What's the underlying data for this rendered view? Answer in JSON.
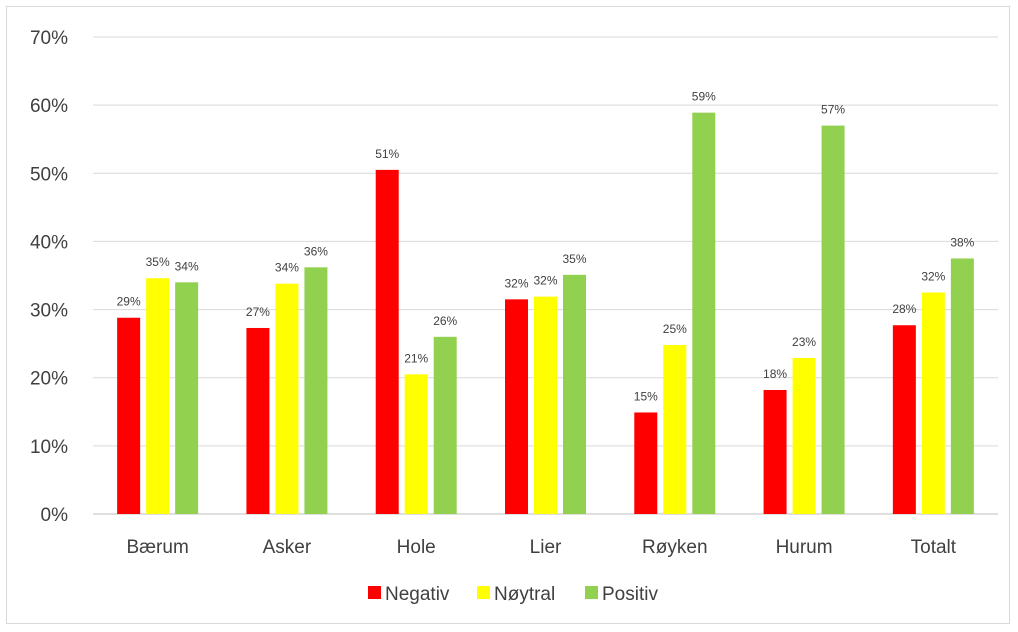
{
  "chart_data": {
    "type": "bar",
    "categories": [
      "Bærum",
      "Asker",
      "Hole",
      "Lier",
      "Røyken",
      "Hurum",
      "Totalt"
    ],
    "series": [
      {
        "name": "Negativ",
        "color": "#ff0000",
        "values": [
          0.288,
          0.273,
          0.505,
          0.315,
          0.149,
          0.182,
          0.277
        ],
        "labels": [
          "29%",
          "27%",
          "51%",
          "32%",
          "15%",
          "18%",
          "28%"
        ]
      },
      {
        "name": "Nøytral",
        "color": "#ffff00",
        "values": [
          0.346,
          0.338,
          0.205,
          0.319,
          0.248,
          0.229,
          0.325
        ],
        "labels": [
          "35%",
          "34%",
          "21%",
          "32%",
          "25%",
          "23%",
          "32%"
        ]
      },
      {
        "name": "Positiv",
        "color": "#92d050",
        "values": [
          0.34,
          0.362,
          0.26,
          0.351,
          0.589,
          0.57,
          0.375
        ],
        "labels": [
          "34%",
          "36%",
          "26%",
          "35%",
          "59%",
          "57%",
          "38%"
        ]
      }
    ],
    "y_ticks": [
      "0%",
      "10%",
      "20%",
      "30%",
      "40%",
      "50%",
      "60%",
      "70%"
    ],
    "ylim": [
      0,
      0.7
    ],
    "grid": true,
    "legend_position": "bottom"
  }
}
